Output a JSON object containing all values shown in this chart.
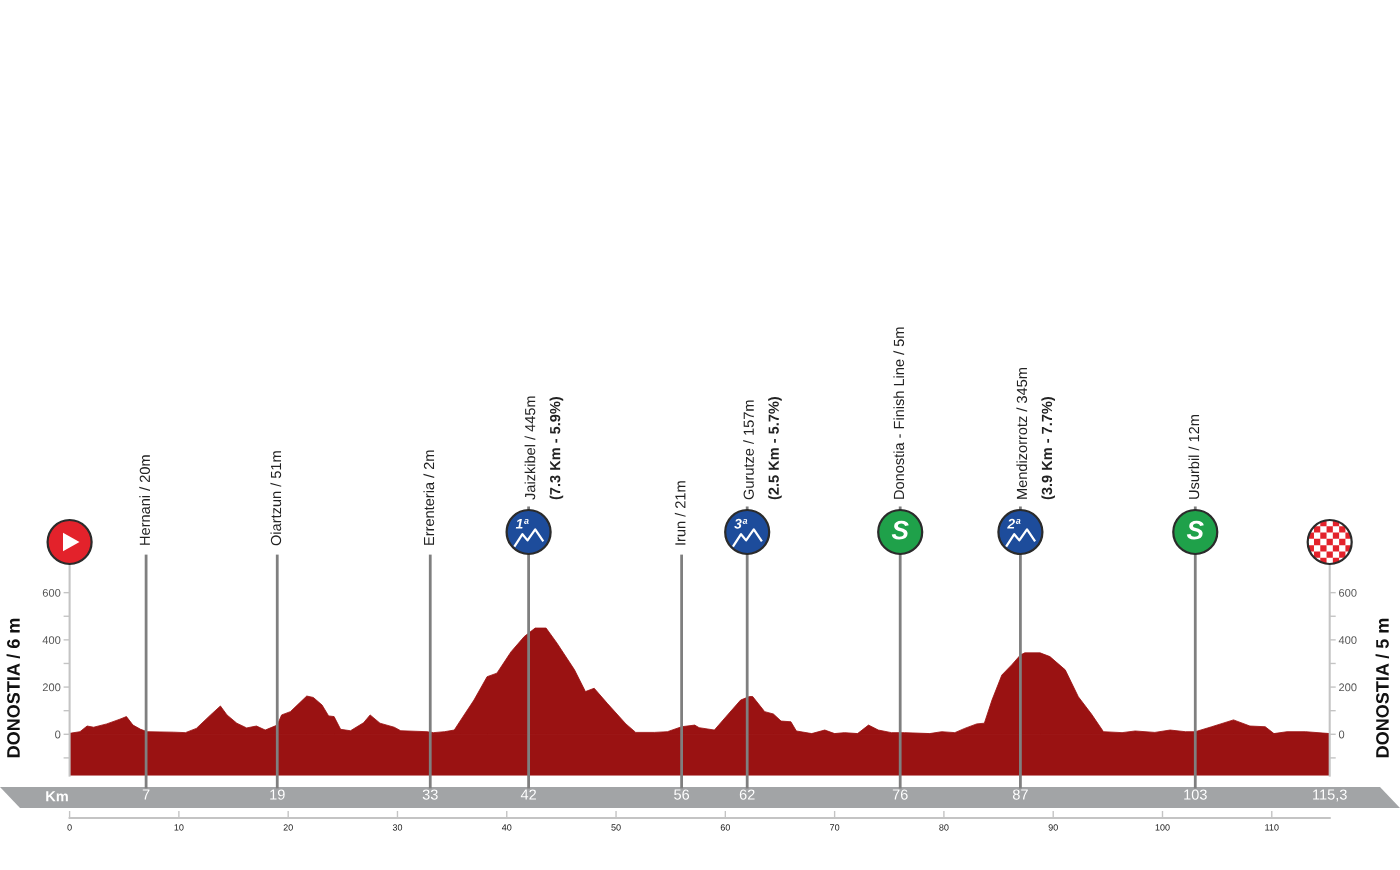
{
  "chart_data": {
    "type": "area",
    "x": [
      0,
      0.95,
      1.6,
      2.2,
      3.4,
      4.6,
      5.2,
      5.8,
      6.5,
      7.1,
      9.5,
      10.6,
      11.6,
      12.9,
      13.8,
      14.4,
      15.3,
      16.2,
      17.1,
      17.9,
      19.0,
      19.4,
      20.2,
      21.0,
      21.7,
      22.3,
      23.1,
      23.7,
      24.2,
      24.8,
      25.7,
      26.9,
      27.5,
      28.4,
      29.7,
      30.3,
      32.7,
      33.3,
      34.3,
      35.2,
      35.8,
      36.7,
      37.0,
      38.2,
      39.1,
      40.4,
      41.6,
      42.6,
      43.6,
      44.6,
      46.2,
      47.2,
      48.0,
      49.2,
      50.9,
      51.8,
      53.5,
      54.7,
      56.0,
      57.2,
      57.6,
      59.0,
      60.2,
      61.4,
      62.2,
      62.5,
      63.6,
      64.4,
      65.1,
      66.0,
      66.5,
      67.9,
      69.1,
      70.0,
      70.9,
      72.1,
      73.1,
      74.0,
      75.2,
      76.4,
      78.7,
      79.8,
      81.0,
      81.9,
      83.0,
      83.7,
      84.4,
      85.3,
      86.2,
      87.0,
      87.4,
      88.8,
      89.7,
      91.1,
      92.3,
      93.5,
      94.6,
      96.3,
      97.5,
      99.3,
      100.7,
      102.1,
      103.0,
      104.5,
      106.5,
      108.0,
      109.4,
      110.2,
      111.4,
      113.1,
      115.3
    ],
    "series": [
      {
        "color": "#9a1212",
        "values": [
          4,
          11,
          35,
          30,
          44,
          64,
          75,
          39,
          21,
          11,
          9,
          7,
          25,
          82,
          120,
          82,
          47,
          27,
          35,
          18,
          39,
          82,
          96,
          131,
          162,
          156,
          124,
          78,
          75,
          21,
          15,
          49,
          82,
          47,
          30,
          15,
          11,
          7,
          11,
          18,
          61,
          124,
          145,
          244,
          259,
          350,
          414,
          450,
          450,
          386,
          273,
          181,
          195,
          131,
          44,
          8,
          8,
          11,
          32,
          39,
          28,
          18,
          82,
          145,
          160,
          160,
          96,
          86,
          56,
          53,
          14,
          3,
          18,
          3,
          7,
          3,
          39,
          18,
          7,
          7,
          3,
          11,
          7,
          25,
          44,
          47,
          145,
          251,
          294,
          336,
          345,
          345,
          329,
          273,
          159,
          86,
          11,
          7,
          14,
          8,
          18,
          11,
          11,
          32,
          61,
          35,
          32,
          3,
          11,
          11,
          3
        ]
      }
    ],
    "ylabel": "DONOSTIA / 6 m",
    "y2label": "DONOSTIA / 5 m",
    "x2label": "Km",
    "xlim": [
      0,
      115.3
    ],
    "xticks": [
      0,
      10,
      20,
      30,
      40,
      50,
      60,
      70,
      80,
      90,
      100,
      110
    ],
    "x2lim": [
      0,
      115.3
    ],
    "x2ticks": [
      7,
      19,
      33,
      42,
      56,
      62,
      76,
      87,
      103,
      {
        "value": 115.3,
        "label": "115,3"
      }
    ],
    "ylim": [
      -175,
      740
    ],
    "yticks": [
      {
        "value": -100,
        "label": null
      },
      0,
      {
        "value": 100,
        "label": null
      },
      200,
      {
        "value": 300,
        "label": null
      },
      400,
      {
        "value": 500,
        "label": null
      },
      600
    ],
    "y2lim": [
      -175,
      740
    ],
    "y2ticks": [
      {
        "value": -100,
        "label": null
      },
      0,
      {
        "value": 100,
        "label": null
      },
      200,
      {
        "value": 300,
        "label": null
      },
      400,
      {
        "value": 500,
        "label": null
      },
      600
    ],
    "bands": [
      {
        "axis": "y",
        "from": -175,
        "to": 0,
        "color": "#9a1212"
      }
    ],
    "ref_lines": [
      {
        "axis": "x",
        "value": 7,
        "label": "Hernani / 20m",
        "color": "#7f7f7f"
      },
      {
        "axis": "x",
        "value": 19,
        "label": "Oiartzun / 51m",
        "color": "#7f7f7f"
      },
      {
        "axis": "x",
        "value": 33,
        "label": "Errenteria / 2m",
        "color": "#7f7f7f"
      },
      {
        "axis": "x",
        "value": 42,
        "label": "Jaizkibel / 445m\n(7.3 Km - 5.9%)",
        "color": "#7f7f7f"
      },
      {
        "axis": "x",
        "value": 56,
        "label": "Irun / 21m",
        "color": "#7f7f7f"
      },
      {
        "axis": "x",
        "value": 62,
        "label": "Gurutze / 157m\n(2.5 Km - 5.7%)",
        "color": "#7f7f7f"
      },
      {
        "axis": "x",
        "value": 76,
        "label": "Donostia - Finish Line / 5m",
        "color": "#7f7f7f"
      },
      {
        "axis": "x",
        "value": 87,
        "label": "Mendizorrotz / 345m\n(3.9 Km - 7.7%)",
        "color": "#7f7f7f"
      },
      {
        "axis": "x",
        "value": 103,
        "label": "Usurbil / 12m",
        "color": "#7f7f7f"
      }
    ],
    "annotations": [
      "1ª",
      "3ª",
      "S",
      "2ª",
      "S"
    ]
  }
}
